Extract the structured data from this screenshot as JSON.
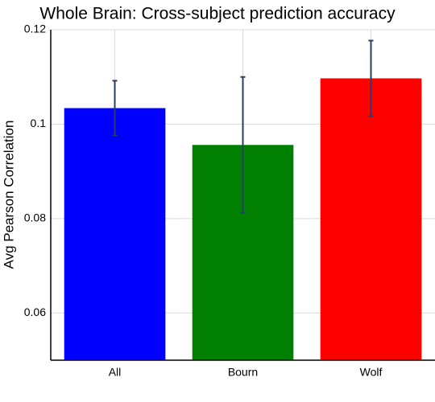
{
  "chart_data": {
    "type": "bar",
    "title": "Whole Brain: Cross-subject prediction accuracy",
    "y_label": "Avg Pearson Correlation",
    "categories": [
      "All",
      "Bourn",
      "Wolf"
    ],
    "values": [
      0.1034,
      0.0956,
      0.1097
    ],
    "errors": [
      0.0058,
      0.0144,
      0.008
    ],
    "colors": [
      "#0000ff",
      "#008000",
      "#ff0000"
    ],
    "error_color": "#2a3f5f",
    "ylim": [
      0.05,
      0.12
    ],
    "yticks": [
      0.06,
      0.08,
      0.1,
      0.12
    ],
    "grid": true
  }
}
